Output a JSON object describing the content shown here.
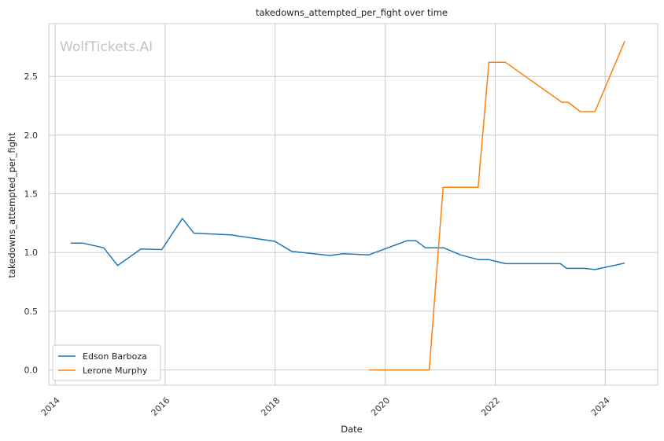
{
  "chart_data": {
    "type": "line",
    "title": "takedowns_attempted_per_fight over time",
    "xlabel": "Date",
    "ylabel": "takedowns_attempted_per_fight",
    "watermark": "WolfTickets.AI",
    "xlim": [
      "2013-11-20",
      "2024-12-15"
    ],
    "ylim": [
      -0.13,
      2.95
    ],
    "x_ticks": [
      "2014",
      "2016",
      "2018",
      "2020",
      "2022",
      "2024"
    ],
    "y_ticks": [
      "0.0",
      "0.5",
      "1.0",
      "1.5",
      "2.0",
      "2.5"
    ],
    "grid": true,
    "legend_position": "lower-left",
    "series": [
      {
        "name": "Edson Barboza",
        "color": "#1f77b4",
        "points": [
          [
            "2014-04-15",
            1.08
          ],
          [
            "2014-07-05",
            1.08
          ],
          [
            "2014-11-20",
            1.04
          ],
          [
            "2015-02-20",
            0.89
          ],
          [
            "2015-07-25",
            1.03
          ],
          [
            "2015-12-10",
            1.025
          ],
          [
            "2016-04-25",
            1.29
          ],
          [
            "2016-07-10",
            1.165
          ],
          [
            "2017-03-10",
            1.15
          ],
          [
            "2017-12-30",
            1.095
          ],
          [
            "2018-04-20",
            1.01
          ],
          [
            "2018-12-30",
            0.975
          ],
          [
            "2019-03-30",
            0.99
          ],
          [
            "2019-09-15",
            0.98
          ],
          [
            "2020-05-25",
            1.1
          ],
          [
            "2020-07-25",
            1.1
          ],
          [
            "2020-09-25",
            1.04
          ],
          [
            "2021-01-25",
            1.04
          ],
          [
            "2021-05-15",
            0.98
          ],
          [
            "2021-09-10",
            0.94
          ],
          [
            "2021-11-20",
            0.94
          ],
          [
            "2022-03-10",
            0.905
          ],
          [
            "2023-03-10",
            0.905
          ],
          [
            "2023-04-20",
            0.865
          ],
          [
            "2023-08-15",
            0.865
          ],
          [
            "2023-10-25",
            0.855
          ],
          [
            "2024-05-10",
            0.91
          ]
        ]
      },
      {
        "name": "Lerone Murphy",
        "color": "#ff7f0e",
        "points": [
          [
            "2019-09-15",
            0.0
          ],
          [
            "2020-10-20",
            0.0
          ],
          [
            "2021-01-20",
            1.555
          ],
          [
            "2021-09-10",
            1.555
          ],
          [
            "2021-11-20",
            2.62
          ],
          [
            "2022-03-10",
            2.62
          ],
          [
            "2023-03-20",
            2.28
          ],
          [
            "2023-05-01",
            2.28
          ],
          [
            "2023-07-20",
            2.2
          ],
          [
            "2023-10-25",
            2.2
          ],
          [
            "2024-05-10",
            2.8
          ]
        ]
      }
    ]
  }
}
